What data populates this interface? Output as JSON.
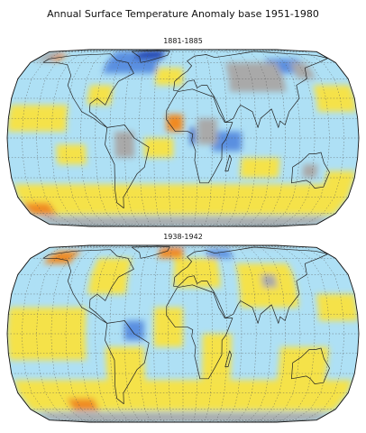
{
  "title": "Annual Surface Temperature Anomaly base 1951-1980",
  "maps": [
    {
      "label": "1881-1885"
    },
    {
      "label": "1938-1942"
    }
  ]
}
